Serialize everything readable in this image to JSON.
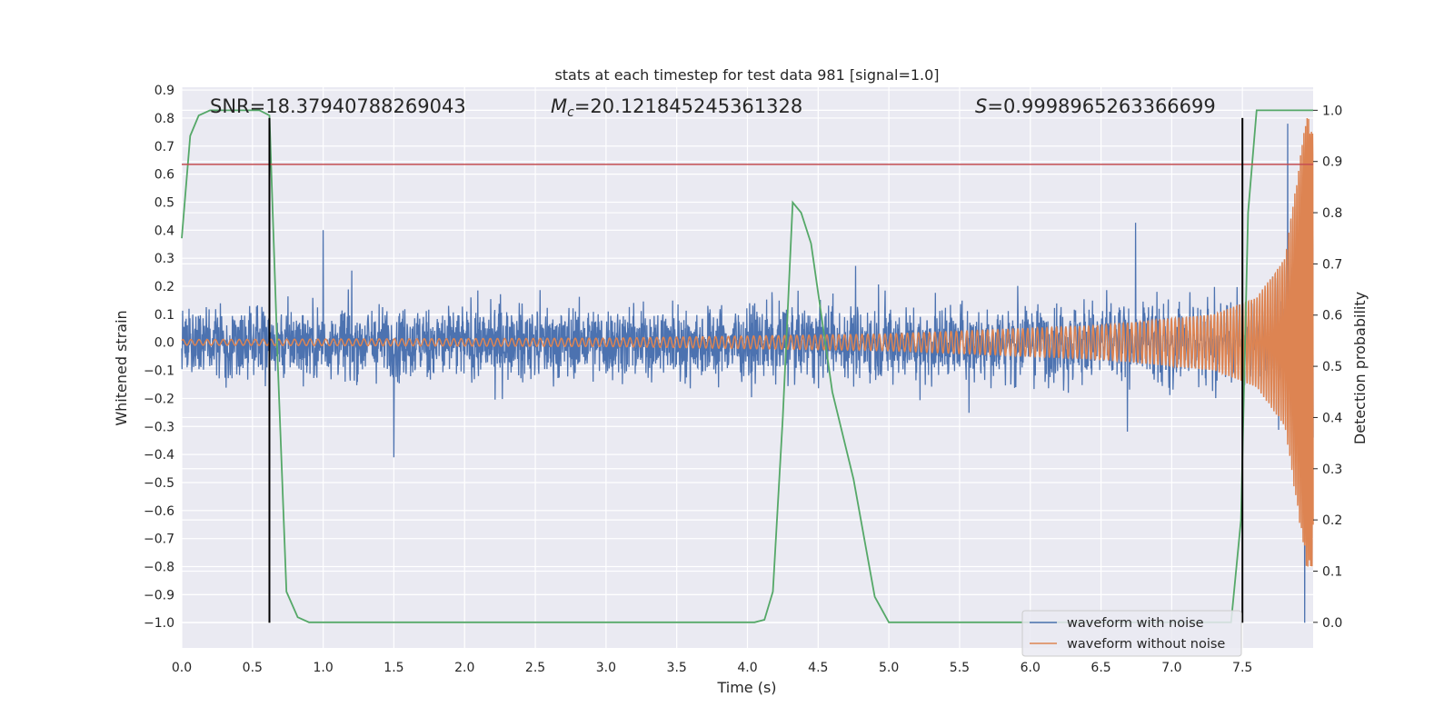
{
  "chart_data": {
    "type": "line",
    "title": "stats at each timestep for test data 981 [signal=1.0]",
    "xlabel": "Time (s)",
    "ylabel": "Whitened strain",
    "y2label": "Detection probability",
    "xlim": [
      0.0,
      8.0
    ],
    "ylim": [
      -1.09,
      0.91
    ],
    "y2lim": [
      -0.05,
      1.045
    ],
    "x_ticks": [
      0.0,
      0.5,
      1.0,
      1.5,
      2.0,
      2.5,
      3.0,
      3.5,
      4.0,
      4.5,
      5.0,
      5.5,
      6.0,
      6.5,
      7.0,
      7.5
    ],
    "x_tick_labels": [
      "0.0",
      "0.5",
      "1.0",
      "1.5",
      "2.0",
      "2.5",
      "3.0",
      "3.5",
      "4.0",
      "4.5",
      "5.0",
      "5.5",
      "6.0",
      "6.5",
      "7.0",
      "7.5"
    ],
    "y_ticks": [
      0.9,
      0.8,
      0.7,
      0.6,
      0.5,
      0.4,
      0.3,
      0.2,
      0.1,
      0.0,
      -0.1,
      -0.2,
      -0.3,
      -0.4,
      -0.5,
      -0.6,
      -0.7,
      -0.8,
      -0.9,
      -1.0
    ],
    "y_tick_labels": [
      "0.9",
      "0.8",
      "0.7",
      "0.6",
      "0.5",
      "0.4",
      "0.3",
      "0.2",
      "0.1",
      "0.0",
      "−0.1",
      "−0.2",
      "−0.3",
      "−0.4",
      "−0.5",
      "−0.6",
      "−0.7",
      "−0.8",
      "−0.9",
      "−1.0"
    ],
    "y2_ticks": [
      1.0,
      0.9,
      0.8,
      0.7,
      0.6,
      0.5,
      0.4,
      0.3,
      0.2,
      0.1,
      0.0
    ],
    "y2_tick_labels": [
      "1.0",
      "0.9",
      "0.8",
      "0.7",
      "0.6",
      "0.5",
      "0.4",
      "0.3",
      "0.2",
      "0.1",
      "0.0"
    ],
    "grid": true,
    "legend_position": "bottom-right",
    "annotations": {
      "snr": "SNR=18.37940788269043",
      "mc_symbol": "M",
      "mc_subscript": "c",
      "mc_value": "=20.121845245361328",
      "s_symbol": "S",
      "s_value": "=0.9998965263366699"
    },
    "series": [
      {
        "name": "waveform with noise",
        "color": "#4c72b0",
        "noise_amplitude_typical": 0.12,
        "x_range": [
          0.0,
          8.0
        ],
        "notable_peaks": [
          {
            "x": 1.0,
            "y": 0.4
          },
          {
            "x": 1.5,
            "y": -0.41
          },
          {
            "x": 7.82,
            "y": 0.78
          },
          {
            "x": 7.94,
            "y": -1.0
          }
        ]
      },
      {
        "name": "waveform without noise",
        "color": "#dd8452",
        "type": "chirp",
        "x_range": [
          0.0,
          8.0
        ],
        "amplitude_points": [
          [
            0.0,
            0.01
          ],
          [
            3.0,
            0.015
          ],
          [
            5.0,
            0.03
          ],
          [
            6.5,
            0.06
          ],
          [
            7.3,
            0.1
          ],
          [
            7.6,
            0.16
          ],
          [
            7.8,
            0.3
          ],
          [
            7.95,
            0.8
          ]
        ]
      },
      {
        "color": "#55a868",
        "axis": "right",
        "x": [
          0.0,
          0.06,
          0.12,
          0.2,
          0.55,
          0.62,
          0.68,
          0.74,
          0.82,
          0.9,
          3.7,
          4.05,
          4.12,
          4.18,
          4.25,
          4.32,
          4.38,
          4.45,
          4.6,
          4.75,
          4.9,
          5.0,
          7.42,
          7.49,
          7.54,
          7.6,
          8.0
        ],
        "y": [
          0.75,
          0.95,
          0.99,
          1.0,
          1.0,
          0.99,
          0.5,
          0.06,
          0.01,
          0.0,
          0.0,
          0.0,
          0.005,
          0.06,
          0.4,
          0.82,
          0.8,
          0.74,
          0.45,
          0.28,
          0.05,
          0.0,
          0.0,
          0.2,
          0.8,
          1.0,
          1.0
        ]
      },
      {
        "color": "#c44e52",
        "axis": "left",
        "type": "hline",
        "y": 0.635
      },
      {
        "color": "#000000",
        "type": "vline",
        "x": 0.62,
        "y_from": -1.0,
        "y_to": 0.8
      },
      {
        "color": "#000000",
        "type": "vline",
        "x": 7.5,
        "y_from": -1.0,
        "y_to": 0.8
      }
    ]
  },
  "colors": {
    "plot_background": "#eaeaf2",
    "grid": "#ffffff",
    "text": "#262626"
  }
}
